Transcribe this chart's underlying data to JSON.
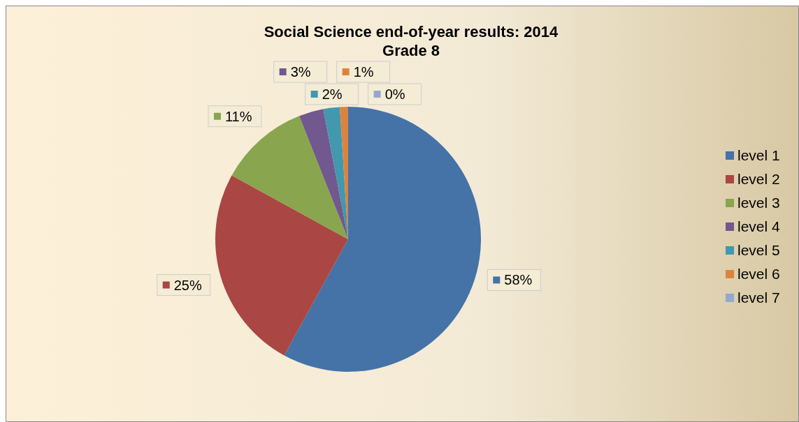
{
  "chart_data": {
    "type": "pie",
    "title": "Social Science end-of-year results: 2014",
    "subtitle": "Grade 8",
    "categories": [
      "level 1",
      "level 2",
      "level 3",
      "level 4",
      "level 5",
      "level 6",
      "level 7"
    ],
    "values": [
      58,
      25,
      11,
      3,
      2,
      1,
      0
    ],
    "value_labels": [
      "58%",
      "25%",
      "11%",
      "3%",
      "2%",
      "1%",
      "0%"
    ],
    "colors": [
      "#4572a7",
      "#aa4643",
      "#89a54e",
      "#71588f",
      "#4198af",
      "#db843d",
      "#93a9cf"
    ],
    "legend": "right"
  }
}
